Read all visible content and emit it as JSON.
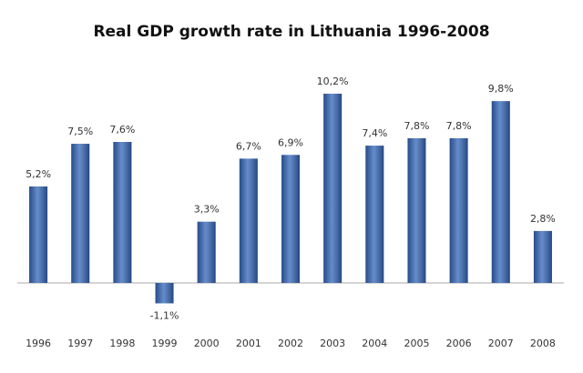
{
  "chart_data": {
    "type": "bar",
    "title": "Real GDP growth rate in Lithuania 1996-2008",
    "categories": [
      "1996",
      "1997",
      "1998",
      "1999",
      "2000",
      "2001",
      "2002",
      "2003",
      "2004",
      "2005",
      "2006",
      "2007",
      "2008"
    ],
    "values": [
      5.2,
      7.5,
      7.6,
      -1.1,
      3.3,
      6.7,
      6.9,
      10.2,
      7.4,
      7.8,
      7.8,
      9.8,
      2.8
    ],
    "value_labels": [
      "5,2%",
      "7,5%",
      "7,6%",
      "-1,1%",
      "3,3%",
      "6,7%",
      "6,9%",
      "10,2%",
      "7,4%",
      "7,8%",
      "7,8%",
      "9,8%",
      "2,8%"
    ],
    "color": "#3366b8"
  }
}
